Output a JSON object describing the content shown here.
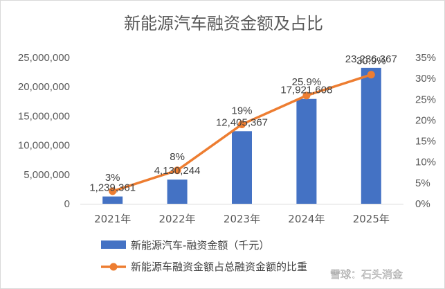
{
  "chart_data": {
    "type": "bar+line",
    "title": "新能源汽车融资金额及占比",
    "categories": [
      "2021年",
      "2022年",
      "2023年",
      "2024年",
      "2025年"
    ],
    "series": [
      {
        "name": "新能源汽车-融资金额（千元）",
        "type": "bar",
        "axis": "left",
        "color": "#4472c4",
        "values": [
          1239361,
          4130244,
          12405367,
          17921608,
          23236367
        ],
        "labels": [
          "1,239,361",
          "4,130,244",
          "12,405,367",
          "17,921,608",
          "23,236,367"
        ]
      },
      {
        "name": "新能源车融资金额占总融资金额的比重",
        "type": "line",
        "axis": "right",
        "color": "#ed7d31",
        "values": [
          3,
          8,
          19,
          25.9,
          30.9
        ],
        "labels": [
          "3%",
          "8%",
          "19%",
          "25.9%",
          "30.9%"
        ]
      }
    ],
    "left_axis": {
      "ylim": [
        0,
        25000000
      ],
      "ticks": [
        "0",
        "5,000,000",
        "10,000,000",
        "15,000,000",
        "20,000,000",
        "25,000,000"
      ]
    },
    "right_axis": {
      "ylim": [
        0,
        35
      ],
      "ticks": [
        "0%",
        "5%",
        "10%",
        "15%",
        "20%",
        "25%",
        "30%",
        "35%"
      ]
    },
    "legend_position": "bottom"
  },
  "watermark": "雪球：石头消金"
}
